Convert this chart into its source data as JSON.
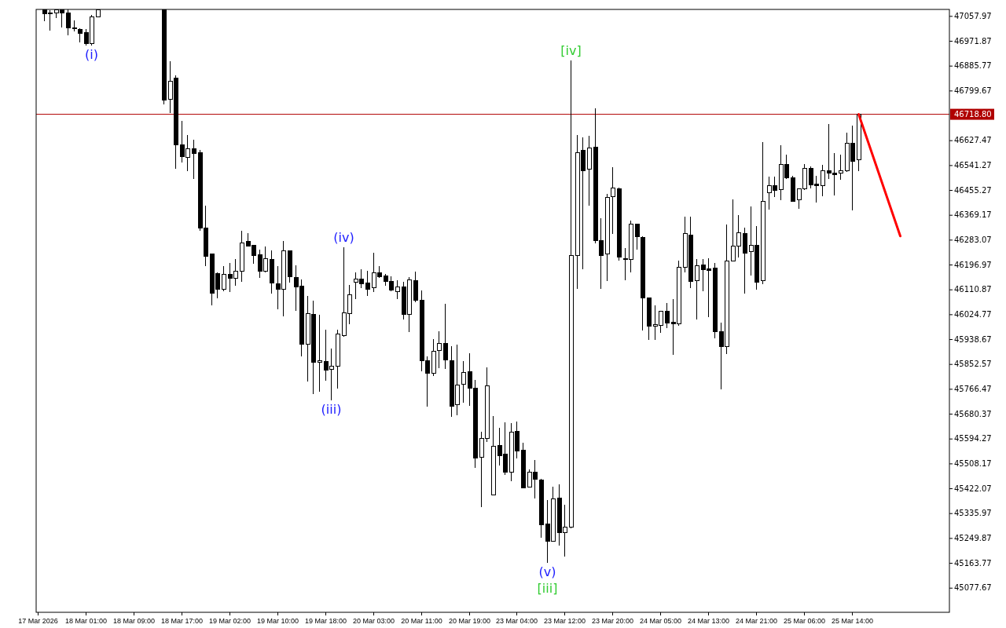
{
  "chart_data": {
    "type": "candlestick",
    "categories": [
      "17 Mar 2026",
      null,
      null,
      null,
      null,
      null,
      null,
      null,
      "18 Mar 01:00",
      null,
      null,
      null,
      null,
      null,
      null,
      null,
      "18 Mar 09:00",
      null,
      null,
      null,
      null,
      null,
      null,
      null,
      "18 Mar 17:00",
      null,
      null,
      null,
      null,
      null,
      null,
      null,
      "19 Mar 02:00",
      null,
      null,
      null,
      null,
      null,
      null,
      null,
      "19 Mar 10:00",
      null,
      null,
      null,
      null,
      null,
      null,
      null,
      "19 Mar 18:00",
      null,
      null,
      null,
      null,
      null,
      null,
      null,
      "20 Mar 03:00",
      null,
      null,
      null,
      null,
      null,
      null,
      null,
      "20 Mar 11:00",
      null,
      null,
      null,
      null,
      null,
      null,
      null,
      "20 Mar 19:00",
      null,
      null,
      null,
      null,
      null,
      null,
      null,
      "23 Mar 04:00",
      null,
      null,
      null,
      null,
      null,
      null,
      null,
      "23 Mar 12:00",
      null,
      null,
      null,
      null,
      null,
      null,
      null,
      "23 Mar 20:00",
      null,
      null,
      null,
      null,
      null,
      null,
      null,
      "24 Mar 05:00",
      null,
      null,
      null,
      null,
      null,
      null,
      null,
      "24 Mar 13:00",
      null,
      null,
      null,
      null,
      null,
      null,
      null,
      "24 Mar 21:00",
      null,
      null,
      null,
      null,
      null,
      null,
      null,
      "25 Mar 06:00",
      null,
      null,
      null,
      null,
      null,
      null,
      null,
      "25 Mar 14:00",
      null,
      null,
      null,
      null,
      null,
      null,
      null,
      null,
      null,
      null,
      null,
      null,
      null,
      null,
      null,
      null
    ],
    "ohlc": [
      null,
      [
        47080,
        47081,
        47040,
        47068
      ],
      [
        47070,
        47080,
        47009,
        47069
      ],
      [
        47071,
        47081,
        47051,
        47080
      ],
      [
        47080,
        47081,
        47019,
        47070
      ],
      [
        47071,
        47081,
        46993,
        47019
      ],
      [
        47019,
        47045,
        47005,
        47018
      ],
      [
        47014,
        47018,
        46967,
        46998
      ],
      [
        47001,
        47014,
        46958,
        46965
      ],
      [
        46965,
        47063,
        46956,
        47057
      ],
      [
        47057,
        47081,
        47057,
        47081
      ],
      null,
      null,
      null,
      null,
      null,
      null,
      null,
      null,
      null,
      null,
      [
        47081,
        47081,
        46752,
        46767
      ],
      [
        46772,
        46902,
        46722,
        46834
      ],
      [
        46845,
        46853,
        46531,
        46612
      ],
      [
        46614,
        46697,
        46552,
        46572
      ],
      [
        46570,
        46646,
        46521,
        46600
      ],
      [
        46599,
        46630,
        46496,
        46584
      ],
      [
        46587,
        46595,
        46316,
        46325
      ],
      [
        46325,
        46401,
        46193,
        46228
      ],
      [
        46234,
        46234,
        46056,
        46098
      ],
      [
        46167,
        46170,
        46082,
        46114
      ],
      [
        46114,
        46192,
        46107,
        46164
      ],
      [
        46164,
        46204,
        46104,
        46152
      ],
      [
        46152,
        46218,
        46125,
        46175
      ],
      [
        46175,
        46315,
        46139,
        46274
      ],
      [
        46278,
        46307,
        46262,
        46262
      ],
      [
        46264,
        46264,
        46202,
        46230
      ],
      [
        46232,
        46251,
        46152,
        46176
      ],
      [
        46176,
        46262,
        46172,
        46218
      ],
      [
        46216,
        46247,
        46098,
        46134
      ],
      [
        46132,
        46194,
        46044,
        46114
      ],
      [
        46113,
        46280,
        46019,
        46247
      ],
      [
        46247,
        46247,
        46136,
        46155
      ],
      [
        46153,
        46197,
        46037,
        46122
      ],
      [
        46124,
        46146,
        45881,
        45923
      ],
      [
        45923,
        46089,
        45794,
        46029
      ],
      [
        46027,
        46073,
        45751,
        45859
      ],
      [
        45859,
        46025,
        45758,
        45865
      ],
      [
        45863,
        45974,
        45796,
        45832
      ],
      [
        45835,
        45908,
        45729,
        45846
      ],
      [
        45845,
        45974,
        45769,
        45957
      ],
      [
        45952,
        46258,
        45949,
        46032
      ],
      [
        46029,
        46129,
        45991,
        46094
      ],
      [
        46137,
        46170,
        46079,
        46148
      ],
      [
        46148,
        46181,
        46117,
        46133
      ],
      [
        46135,
        46177,
        46090,
        46114
      ],
      [
        46118,
        46240,
        46104,
        46169
      ],
      [
        46169,
        46194,
        46152,
        46157
      ],
      [
        46159,
        46167,
        46125,
        46139
      ],
      [
        46140,
        46157,
        46105,
        46109
      ],
      [
        46105,
        46143,
        46079,
        46121
      ],
      [
        46121,
        46139,
        46009,
        46027
      ],
      [
        46027,
        46154,
        45965,
        46145
      ],
      [
        46143,
        46175,
        46069,
        46074
      ],
      [
        46075,
        46108,
        45830,
        45865
      ],
      [
        45865,
        45881,
        45705,
        45821
      ],
      [
        45822,
        45941,
        45813,
        45899
      ],
      [
        45900,
        45966,
        45840,
        45924
      ],
      [
        45924,
        46062,
        45838,
        45867
      ],
      [
        45865,
        45916,
        45670,
        45708
      ],
      [
        45712,
        45922,
        45676,
        45782
      ],
      [
        45784,
        45863,
        45719,
        45825
      ],
      [
        45828,
        45890,
        45709,
        45771
      ],
      [
        45771,
        45798,
        45493,
        45529
      ],
      [
        45532,
        45620,
        45357,
        45596
      ],
      [
        45596,
        45842,
        45583,
        45779
      ],
      [
        45401,
        45675,
        45399,
        45569
      ],
      [
        45572,
        45632,
        45502,
        45537
      ],
      [
        45542,
        45653,
        45469,
        45479
      ],
      [
        45478,
        45648,
        45447,
        45618
      ],
      [
        45620,
        45655,
        45526,
        45553
      ],
      [
        45556,
        45581,
        45423,
        45426
      ],
      [
        45427,
        45489,
        45426,
        45478
      ],
      [
        45478,
        45521,
        45388,
        45454
      ],
      [
        45451,
        45456,
        45251,
        45296
      ],
      [
        45301,
        45382,
        45164,
        45240
      ],
      [
        45240,
        45430,
        45240,
        45386
      ],
      [
        45390,
        45436,
        45226,
        45269
      ],
      [
        45269,
        45366,
        45188,
        45288
      ],
      [
        45290,
        46906,
        45285,
        46231
      ],
      [
        46231,
        46646,
        46114,
        46587
      ],
      [
        46594,
        46638,
        46182,
        46524
      ],
      [
        46530,
        46644,
        46402,
        46602
      ],
      [
        46605,
        46740,
        46273,
        46282
      ],
      [
        46282,
        46358,
        46114,
        46231
      ],
      [
        46234,
        46442,
        46141,
        46430
      ],
      [
        46433,
        46536,
        46305,
        46463
      ],
      [
        46461,
        46465,
        46211,
        46225
      ],
      [
        46220,
        46255,
        46143,
        46219
      ],
      [
        46215,
        46352,
        46171,
        46339
      ],
      [
        46339,
        46339,
        46249,
        46295
      ],
      [
        46291,
        46297,
        45971,
        46083
      ],
      [
        46083,
        46083,
        45937,
        45986
      ],
      [
        45984,
        46056,
        45937,
        45990
      ],
      [
        45988,
        46036,
        45961,
        46036
      ],
      [
        46036,
        46065,
        45977,
        45996
      ],
      [
        45998,
        46079,
        45886,
        45992
      ],
      [
        45992,
        46213,
        45986,
        46188
      ],
      [
        46188,
        46364,
        46171,
        46306
      ],
      [
        46301,
        46364,
        46117,
        46139
      ],
      [
        46142,
        46218,
        46007,
        46193
      ],
      [
        46197,
        46218,
        46106,
        46182
      ],
      [
        46183,
        46220,
        46017,
        46179
      ],
      [
        46186,
        46204,
        45942,
        45966
      ],
      [
        45966,
        45998,
        45765,
        45914
      ],
      [
        45914,
        46337,
        45888,
        46210
      ],
      [
        46212,
        46423,
        46212,
        46263
      ],
      [
        46261,
        46369,
        46222,
        46309
      ],
      [
        46306,
        46325,
        46098,
        46239
      ],
      [
        46242,
        46399,
        46160,
        46266
      ],
      [
        46266,
        46331,
        46112,
        46136
      ],
      [
        46142,
        46622,
        46131,
        46417
      ],
      [
        46446,
        46503,
        46389,
        46473
      ],
      [
        46473,
        46503,
        46432,
        46456
      ],
      [
        46457,
        46611,
        46421,
        46546
      ],
      [
        46546,
        46578,
        46494,
        46499
      ],
      [
        46500,
        46506,
        46418,
        46418
      ],
      [
        46422,
        46462,
        46391,
        46462
      ],
      [
        46462,
        46546,
        46456,
        46532
      ],
      [
        46532,
        46539,
        46461,
        46475
      ],
      [
        46476,
        46506,
        46413,
        46473
      ],
      [
        46471,
        46543,
        46435,
        46524
      ],
      [
        46524,
        46686,
        46494,
        46514
      ],
      [
        46514,
        46584,
        46437,
        46511
      ],
      [
        46516,
        46578,
        46491,
        46522
      ],
      [
        46524,
        46656,
        46518,
        46619
      ],
      [
        46619,
        46680,
        46387,
        46557
      ],
      [
        46562,
        46718.8,
        46521,
        46718.8
      ],
      null,
      null,
      null,
      null,
      null,
      null,
      null,
      null,
      null,
      null,
      null,
      null,
      null,
      null,
      null
    ],
    "series": [
      {
        "type": "line",
        "color": "#ff0000",
        "values": [
          null,
          null,
          null,
          null,
          null,
          null,
          null,
          null,
          null,
          null,
          null,
          null,
          null,
          null,
          null,
          null,
          null,
          null,
          null,
          null,
          null,
          null,
          null,
          null,
          null,
          null,
          null,
          null,
          null,
          null,
          null,
          null,
          null,
          null,
          null,
          null,
          null,
          null,
          null,
          null,
          null,
          null,
          null,
          null,
          null,
          null,
          null,
          null,
          null,
          null,
          null,
          null,
          null,
          null,
          null,
          null,
          null,
          null,
          null,
          null,
          null,
          null,
          null,
          null,
          null,
          null,
          null,
          null,
          null,
          null,
          null,
          null,
          null,
          null,
          null,
          null,
          null,
          null,
          null,
          null,
          null,
          null,
          null,
          null,
          null,
          null,
          null,
          null,
          null,
          null,
          null,
          null,
          null,
          null,
          null,
          null,
          null,
          null,
          null,
          null,
          null,
          null,
          null,
          null,
          null,
          null,
          null,
          null,
          null,
          null,
          null,
          null,
          null,
          null,
          null,
          null,
          null,
          null,
          null,
          null,
          null,
          null,
          null,
          null,
          null,
          null,
          null,
          null,
          null,
          null,
          null,
          null,
          null,
          null,
          null,
          null,
          null,
          46718.8,
          null,
          null,
          null,
          null,
          null,
          null,
          46297,
          null,
          null,
          null,
          null,
          null,
          null,
          null,
          null
        ]
      }
    ],
    "ylim": [
      44994,
      47082
    ],
    "yticks": [
      47057.97,
      46971.87,
      46885.77,
      46799.67,
      46627.47,
      46541.27,
      46455.27,
      46369.17,
      46283.07,
      46196.97,
      46110.87,
      46024.77,
      45938.67,
      45852.57,
      45766.47,
      45680.37,
      45594.27,
      45508.17,
      45422.07,
      45335.97,
      45249.87,
      45163.77,
      45077.67
    ],
    "ref_lines": [
      {
        "axis": "y",
        "value": 46718.8,
        "label": "46718.80",
        "color": "#b00000"
      }
    ],
    "annotations": [
      {
        "text": "(i)",
        "y": 46956
      },
      {
        "text": "(iii)",
        "y": 45729
      },
      {
        "text": "(iv)",
        "y": 46258
      },
      {
        "text": "(v)",
        "y": 45164
      },
      {
        "text": "[iii]",
        "y": 45164
      },
      {
        "text": "[iv]",
        "y": 46906
      }
    ]
  }
}
